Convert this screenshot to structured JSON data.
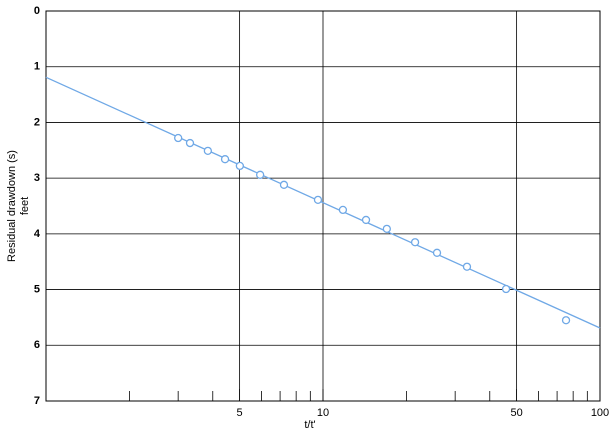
{
  "chart_data": {
    "type": "scatter",
    "xlabel": "t/t'",
    "ylabel": [
      "Residual drawdown (s)",
      "feet"
    ],
    "xscale": "log",
    "xlim": [
      1,
      100
    ],
    "ylim": [
      0,
      7
    ],
    "y_inverted": true,
    "xticks": [
      5,
      10,
      50,
      100
    ],
    "x_grid": [
      5,
      10,
      50
    ],
    "minor_xticks": [
      2,
      3,
      4,
      6,
      7,
      8,
      9,
      20,
      30,
      40,
      60,
      70,
      80,
      90
    ],
    "yticks": [
      0,
      1,
      2,
      3,
      4,
      5,
      6,
      7
    ],
    "grid": true,
    "color": "#6fa8e6",
    "x": [
      3.0,
      3.31,
      3.84,
      4.43,
      5.01,
      5.93,
      7.23,
      9.59,
      11.8,
      14.3,
      17.0,
      21.5,
      25.8,
      33.1,
      45.8,
      75.4
    ],
    "values": [
      2.28,
      2.37,
      2.51,
      2.66,
      2.78,
      2.94,
      3.12,
      3.39,
      3.57,
      3.75,
      3.91,
      4.15,
      4.34,
      4.59,
      4.99,
      5.55
    ],
    "fit_line": {
      "x": [
        1,
        100
      ],
      "y": [
        1.19,
        5.69
      ]
    }
  }
}
